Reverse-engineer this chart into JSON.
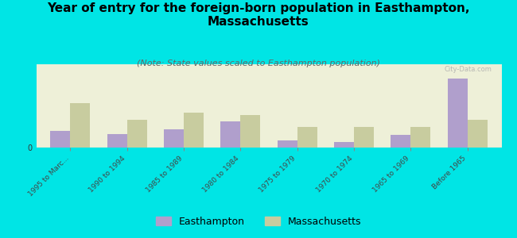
{
  "title": "Year of entry for the foreign-born population in Easthampton,\nMassachusetts",
  "subtitle": "(Note: State values scaled to Easthampton population)",
  "categories": [
    "1995 to Marc...",
    "1990 to 1994",
    "1985 to 1989",
    "1980 to 1984",
    "1975 to 1979",
    "1970 to 1974",
    "1965 to 1969",
    "Before 1965"
  ],
  "easthampton_values": [
    18,
    15,
    20,
    28,
    8,
    6,
    14,
    75
  ],
  "massachusetts_values": [
    48,
    30,
    38,
    35,
    22,
    22,
    22,
    30
  ],
  "easthampton_color": "#b09fcc",
  "massachusetts_color": "#c8cc9f",
  "background_color": "#00e5e5",
  "plot_bg": "#eef0d8",
  "title_fontsize": 11,
  "subtitle_fontsize": 8,
  "bar_width": 0.35,
  "watermark": "City-Data.com"
}
